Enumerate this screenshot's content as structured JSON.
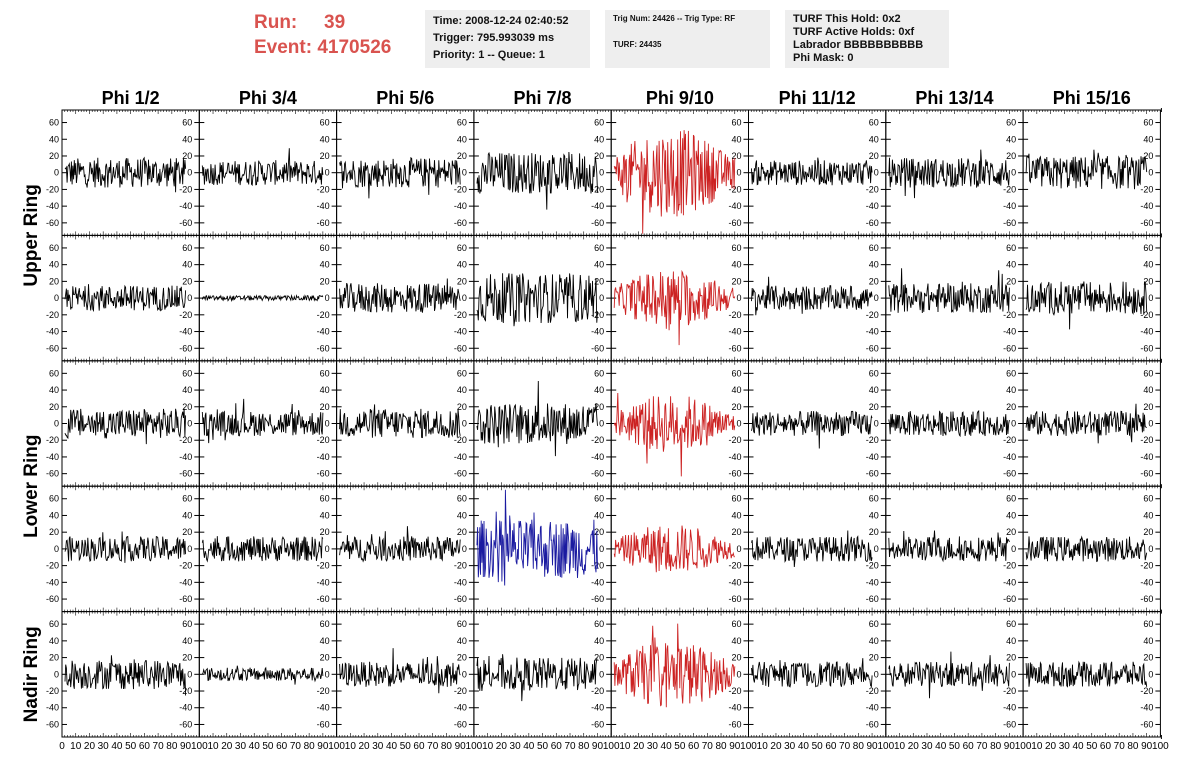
{
  "header": {
    "run_label": "Run:",
    "run_value": "39",
    "event_label": "Event:",
    "event_value": "4170526",
    "time_line": "Time: 2008-12-24 02:40:52",
    "trigger_line": "Trigger: 795.993039 ms",
    "priority_line": "Priority: 1 -- Queue: 1",
    "trig_line": "Trig Num: 24426 -- Trig Type: RF",
    "turf_line": "TURF: 24435",
    "turf_hold_line": "TURF This Hold: 0x2",
    "turf_active_line": "TURF Active Holds: 0xf",
    "labrador_line": "Labrador BBBBBBBBBB",
    "phi_mask_line": "Phi Mask: 0"
  },
  "colors": {
    "default": "#000000",
    "highlight_phi": "#cc2222",
    "highlight_trigger": "#1a1aa0",
    "header_text": "#d9534f",
    "box_bg": "#eeeeee"
  },
  "chart_data": {
    "type": "line",
    "columns": [
      "Phi 1/2",
      "Phi 3/4",
      "Phi 5/6",
      "Phi 7/8",
      "Phi 9/10",
      "Phi 11/12",
      "Phi 13/14",
      "Phi 15/16"
    ],
    "rows": [
      "Upper Ring",
      "Lower Ring",
      "Nadir Ring"
    ],
    "row_label_panels": [
      [
        0,
        1
      ],
      [
        2,
        3
      ],
      [
        4
      ]
    ],
    "y_ticks": [
      -60,
      -40,
      -20,
      0,
      20,
      40,
      60
    ],
    "ylim": [
      -75,
      75
    ],
    "x_tick_labels_first": [
      "0",
      "10",
      "20",
      "30",
      "40",
      "50",
      "60",
      "70",
      "80",
      "90",
      "100"
    ],
    "x_tick_labels": [
      "10",
      "20",
      "30",
      "40",
      "50",
      "60",
      "70",
      "80",
      "90",
      "100"
    ],
    "xlim": [
      0,
      100
    ],
    "panel_color": [
      [
        "default",
        "default",
        "default",
        "default",
        "highlight_phi",
        "default",
        "default",
        "default"
      ],
      [
        "default",
        "default",
        "default",
        "default",
        "highlight_phi",
        "default",
        "default",
        "default"
      ],
      [
        "default",
        "default",
        "default",
        "default",
        "highlight_phi",
        "default",
        "default",
        "default"
      ],
      [
        "default",
        "default",
        "default",
        "highlight_trigger",
        "highlight_phi",
        "default",
        "default",
        "default"
      ],
      [
        "default",
        "default",
        "default",
        "default",
        "highlight_phi",
        "default",
        "default",
        "default"
      ]
    ],
    "panel_amplitude": [
      [
        18,
        15,
        18,
        25,
        45,
        15,
        18,
        20
      ],
      [
        15,
        3,
        18,
        30,
        30,
        15,
        18,
        20
      ],
      [
        18,
        15,
        18,
        25,
        30,
        15,
        15,
        15
      ],
      [
        15,
        15,
        15,
        35,
        25,
        15,
        15,
        15
      ],
      [
        18,
        8,
        15,
        20,
        35,
        15,
        15,
        15
      ]
    ]
  }
}
